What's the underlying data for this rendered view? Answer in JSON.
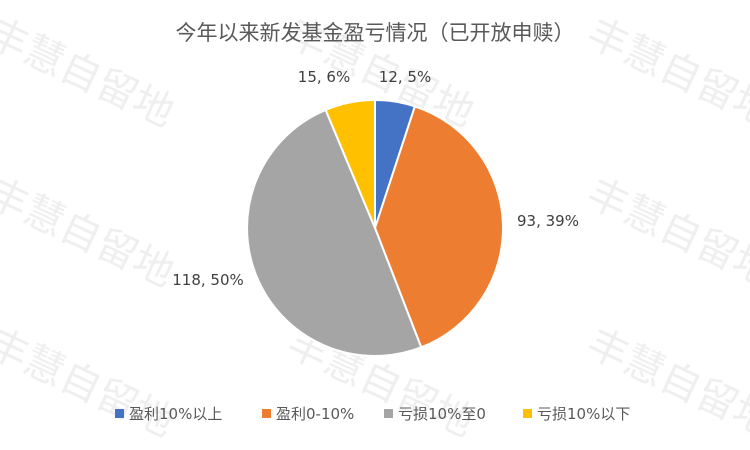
{
  "chart_data": {
    "type": "pie",
    "title": "今年以来新发基金盈亏情况（已开放申赎）",
    "categories": [
      "盈利10%以上",
      "盈利0-10%",
      "亏损10%至0",
      "亏损10%以下"
    ],
    "values": [
      12,
      93,
      118,
      15
    ],
    "percent_labels": [
      "5%",
      "39%",
      "50%",
      "6%"
    ],
    "data_labels": [
      "12, 5%",
      "93, 39%",
      "118, 50%",
      "15, 6%"
    ],
    "colors": [
      "#4472C4",
      "#ED7D31",
      "#A5A5A5",
      "#FFC000"
    ],
    "legend_position": "bottom",
    "start_angle_deg": 0,
    "direction": "clockwise"
  },
  "watermark": {
    "text": "丰慧自留地"
  }
}
